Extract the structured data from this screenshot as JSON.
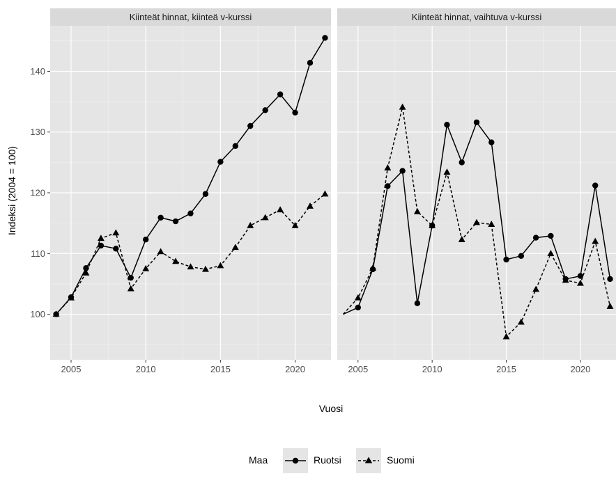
{
  "chart_data": {
    "type": "line",
    "xlabel": "Vuosi",
    "ylabel": "Indeksi (2004 = 100)",
    "xlim": [
      2003.6,
      2022.4
    ],
    "ylim": [
      92.5,
      147.5
    ],
    "x_ticks": [
      2005,
      2010,
      2015,
      2020
    ],
    "y_ticks": [
      100,
      110,
      120,
      130,
      140
    ],
    "x_tick_labels": [
      "2005",
      "2010",
      "2015",
      "2020"
    ],
    "y_tick_labels": [
      "100",
      "110",
      "120",
      "130",
      "140"
    ],
    "grid": true,
    "legend": {
      "title": "Maa",
      "position": "bottom",
      "entries": [
        {
          "label": "Ruotsi",
          "linetype": "solid",
          "marker": "circle"
        },
        {
          "label": "Suomi",
          "linetype": "dashed",
          "marker": "triangle"
        }
      ]
    },
    "colors": {
      "panel_background": "#e5e5e5",
      "strip_background": "#d9d9d9",
      "grid": "#ffffff",
      "series": "#000000"
    },
    "x": [
      2004,
      2005,
      2006,
      2007,
      2008,
      2009,
      2010,
      2011,
      2012,
      2013,
      2014,
      2015,
      2016,
      2017,
      2018,
      2019,
      2020,
      2021,
      2022
    ],
    "panels": [
      {
        "title": "Kiinteät hinnat, kiinteä v-kurssi",
        "series": [
          {
            "name": "Ruotsi",
            "values": [
              100,
              102.8,
              107.6,
              111.3,
              110.8,
              106.0,
              112.3,
              115.9,
              115.3,
              116.6,
              119.8,
              125.1,
              127.7,
              131.0,
              133.6,
              136.2,
              133.2,
              141.4,
              145.5
            ]
          },
          {
            "name": "Suomi",
            "values": [
              100,
              102.7,
              106.8,
              112.5,
              113.4,
              104.2,
              107.5,
              110.3,
              108.7,
              107.8,
              107.4,
              108.0,
              111.0,
              114.6,
              115.9,
              117.2,
              114.6,
              117.8,
              119.8
            ]
          }
        ]
      },
      {
        "title": "Kiinteät hinnat, vaihtuva v-kurssi",
        "series": [
          {
            "name": "Ruotsi",
            "values": [
              100,
              101.1,
              107.4,
              121.1,
              123.6,
              101.8,
              114.6,
              131.2,
              125.0,
              131.6,
              128.3,
              109.0,
              109.6,
              112.6,
              112.9,
              105.8,
              106.3,
              121.2,
              105.8
            ]
          },
          {
            "name": "Suomi",
            "values": [
              100,
              102.7,
              107.6,
              124.1,
              134.1,
              116.9,
              114.6,
              123.4,
              112.3,
              115.1,
              114.8,
              96.3,
              98.7,
              104.1,
              110.0,
              105.6,
              105.1,
              112.0,
              101.3
            ]
          }
        ]
      }
    ]
  }
}
